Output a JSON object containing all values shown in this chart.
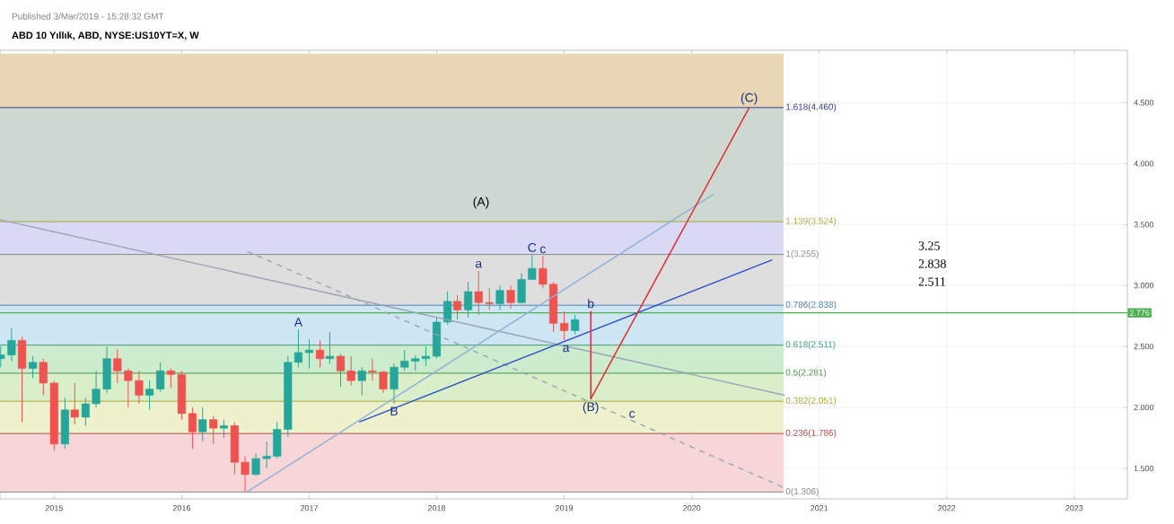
{
  "chart_data": {
    "type": "candlestick",
    "title": "ABD 10 Yıllık, ABD, NYSE:US10YT=X, W",
    "xlim": [
      "2014-07-30",
      "2023-06-02"
    ],
    "ylim": [
      1.25,
      4.93
    ],
    "xticks": [
      "2015",
      "2016",
      "2017",
      "2018",
      "2019",
      "2020",
      "2021",
      "2022",
      "2023"
    ],
    "yticks": [
      {
        "value": 1.5,
        "label": "1.500"
      },
      {
        "value": 2.0,
        "label": "2.000"
      },
      {
        "value": 2.5,
        "label": "2.500"
      },
      {
        "value": 3.0,
        "label": "3.000"
      },
      {
        "value": 3.5,
        "label": "3.500"
      },
      {
        "value": 4.0,
        "label": "4.000"
      },
      {
        "value": 4.5,
        "label": "4.500"
      }
    ],
    "grid": true,
    "series": [
      {
        "x": [
          "2014-08",
          "2014-09",
          "2014-10",
          "2014-11",
          "2014-12",
          "2015-01",
          "2015-02",
          "2015-03",
          "2015-04",
          "2015-05",
          "2015-06",
          "2015-07",
          "2015-08",
          "2015-09",
          "2015-10",
          "2015-11",
          "2015-12",
          "2016-01",
          "2016-02",
          "2016-03",
          "2016-04",
          "2016-05",
          "2016-06",
          "2016-07",
          "2016-08",
          "2016-09",
          "2016-10",
          "2016-11",
          "2016-12",
          "2017-01",
          "2017-02",
          "2017-03",
          "2017-04",
          "2017-05",
          "2017-06",
          "2017-07",
          "2017-08",
          "2017-09",
          "2017-10",
          "2017-11",
          "2017-12",
          "2018-01",
          "2018-02",
          "2018-03",
          "2018-04",
          "2018-05",
          "2018-06",
          "2018-07",
          "2018-08",
          "2018-09",
          "2018-10",
          "2018-11",
          "2018-12",
          "2019-01",
          "2019-02"
        ],
        "ohlc": [
          [
            2.4,
            2.5,
            2.33,
            2.43
          ],
          [
            2.43,
            2.65,
            2.38,
            2.55
          ],
          [
            2.55,
            2.58,
            1.88,
            2.32
          ],
          [
            2.32,
            2.42,
            2.24,
            2.37
          ],
          [
            2.37,
            2.4,
            2.1,
            2.2
          ],
          [
            2.2,
            2.22,
            1.65,
            1.7
          ],
          [
            1.7,
            2.08,
            1.66,
            1.98
          ],
          [
            1.98,
            2.2,
            1.86,
            1.92
          ],
          [
            1.92,
            2.08,
            1.85,
            2.03
          ],
          [
            2.03,
            2.3,
            2.0,
            2.15
          ],
          [
            2.15,
            2.5,
            2.12,
            2.4
          ],
          [
            2.4,
            2.48,
            2.2,
            2.3
          ],
          [
            2.3,
            2.32,
            2.0,
            2.22
          ],
          [
            2.22,
            2.3,
            2.03,
            2.1
          ],
          [
            2.1,
            2.22,
            1.98,
            2.15
          ],
          [
            2.15,
            2.37,
            2.13,
            2.3
          ],
          [
            2.3,
            2.32,
            2.16,
            2.27
          ],
          [
            2.27,
            2.3,
            1.9,
            1.95
          ],
          [
            1.95,
            2.0,
            1.66,
            1.8
          ],
          [
            1.8,
            2.0,
            1.72,
            1.9
          ],
          [
            1.9,
            1.93,
            1.7,
            1.83
          ],
          [
            1.83,
            1.9,
            1.75,
            1.85
          ],
          [
            1.85,
            1.88,
            1.45,
            1.55
          ],
          [
            1.55,
            1.6,
            1.31,
            1.45
          ],
          [
            1.45,
            1.62,
            1.44,
            1.58
          ],
          [
            1.58,
            1.72,
            1.5,
            1.6
          ],
          [
            1.6,
            1.88,
            1.58,
            1.82
          ],
          [
            1.82,
            2.42,
            1.76,
            2.37
          ],
          [
            2.37,
            2.64,
            2.33,
            2.45
          ],
          [
            2.45,
            2.56,
            2.32,
            2.47
          ],
          [
            2.47,
            2.55,
            2.33,
            2.4
          ],
          [
            2.4,
            2.62,
            2.36,
            2.42
          ],
          [
            2.42,
            2.44,
            2.17,
            2.3
          ],
          [
            2.3,
            2.42,
            2.18,
            2.22
          ],
          [
            2.22,
            2.33,
            2.1,
            2.3
          ],
          [
            2.3,
            2.4,
            2.22,
            2.29
          ],
          [
            2.29,
            2.3,
            2.12,
            2.15
          ],
          [
            2.15,
            2.36,
            2.03,
            2.33
          ],
          [
            2.33,
            2.47,
            2.3,
            2.38
          ],
          [
            2.38,
            2.43,
            2.3,
            2.4
          ],
          [
            2.4,
            2.5,
            2.34,
            2.42
          ],
          [
            2.42,
            2.74,
            2.4,
            2.7
          ],
          [
            2.7,
            2.95,
            2.68,
            2.87
          ],
          [
            2.87,
            2.92,
            2.72,
            2.8
          ],
          [
            2.8,
            3.03,
            2.74,
            2.95
          ],
          [
            2.95,
            3.12,
            2.76,
            2.86
          ],
          [
            2.86,
            2.98,
            2.8,
            2.85
          ],
          [
            2.85,
            3.0,
            2.8,
            2.96
          ],
          [
            2.96,
            3.0,
            2.81,
            2.86
          ],
          [
            2.86,
            3.1,
            2.85,
            3.05
          ],
          [
            3.05,
            3.25,
            3.05,
            3.14
          ],
          [
            3.14,
            3.24,
            2.98,
            3.01
          ],
          [
            3.01,
            3.03,
            2.62,
            2.69
          ],
          [
            2.69,
            2.79,
            2.55,
            2.63
          ],
          [
            2.63,
            2.76,
            2.6,
            2.72
          ]
        ],
        "colors": [
          "#26a69a",
          "#26a69a",
          "#ef5350",
          "#26a69a",
          "#ef5350",
          "#ef5350",
          "#26a69a",
          "#ef5350",
          "#26a69a",
          "#26a69a",
          "#26a69a",
          "#ef5350",
          "#ef5350",
          "#ef5350",
          "#26a69a",
          "#26a69a",
          "#ef5350",
          "#ef5350",
          "#ef5350",
          "#26a69a",
          "#ef5350",
          "#26a69a",
          "#ef5350",
          "#ef5350",
          "#26a69a",
          "#26a69a",
          "#26a69a",
          "#26a69a",
          "#26a69a",
          "#26a69a",
          "#ef5350",
          "#26a69a",
          "#ef5350",
          "#ef5350",
          "#26a69a",
          "#ef5350",
          "#ef5350",
          "#26a69a",
          "#26a69a",
          "#26a69a",
          "#26a69a",
          "#26a69a",
          "#26a69a",
          "#ef5350",
          "#26a69a",
          "#ef5350",
          "#ef5350",
          "#26a69a",
          "#ef5350",
          "#26a69a",
          "#26a69a",
          "#ef5350",
          "#ef5350",
          "#ef5350",
          "#26a69a"
        ]
      },
      {
        "type": "line",
        "x": [
          "2014-07-30",
          "2020-09-24"
        ],
        "values": [
          3.54,
          2.1
        ],
        "color": "#9aa3b5"
      },
      {
        "type": "line",
        "x": [
          "2016-07-08",
          "2020-09-24"
        ],
        "values": [
          3.28,
          1.34
        ],
        "color": "#9aa3b5",
        "line_style": "dashed"
      },
      {
        "type": "line",
        "x": [
          "2017-05-24",
          "2020-08-19"
        ],
        "values": [
          1.88,
          3.21
        ],
        "color": "#2e4fc4"
      },
      {
        "type": "line",
        "x": [
          "2016-07-08",
          "2020-03-04"
        ],
        "values": [
          1.31,
          3.75
        ],
        "color": "#8fb0d8"
      },
      {
        "type": "line",
        "x": [
          "2019-03-18",
          "2019-03-18",
          "2020-06-14"
        ],
        "values": [
          2.79,
          2.07,
          4.46
        ],
        "color": "#e8202a"
      }
    ],
    "bands": [
      {
        "axis": "y",
        "from": 1.306,
        "to": 1.786,
        "color": "#f6d6d6"
      },
      {
        "axis": "y",
        "from": 1.786,
        "to": 2.051,
        "color": "#eef2cc"
      },
      {
        "axis": "y",
        "from": 2.051,
        "to": 2.281,
        "color": "#d8efc9"
      },
      {
        "axis": "y",
        "from": 2.281,
        "to": 2.511,
        "color": "#cdeccd"
      },
      {
        "axis": "y",
        "from": 2.511,
        "to": 2.838,
        "color": "#cde6f2"
      },
      {
        "axis": "y",
        "from": 2.838,
        "to": 3.255,
        "color": "#dedede"
      },
      {
        "axis": "y",
        "from": 3.255,
        "to": 3.524,
        "color": "#d9d9f3"
      },
      {
        "axis": "y",
        "from": 3.524,
        "to": 4.46,
        "color": "#cfd8d0"
      },
      {
        "axis": "y",
        "from": 4.46,
        "to": 4.9,
        "color": "#e8d6b4"
      }
    ],
    "ref_lines": [
      {
        "axis": "y",
        "value": 2.776,
        "label": "2.776",
        "color": "#4caf50"
      },
      {
        "axis": "y",
        "value": 1.306,
        "label": "0(1.306)",
        "color": "#8a8a8a"
      },
      {
        "axis": "y",
        "value": 1.786,
        "label": "0.236(1.786)",
        "color": "#b04a4a"
      },
      {
        "axis": "y",
        "value": 2.051,
        "label": "0.382(2.051)",
        "color": "#a8a83a"
      },
      {
        "axis": "y",
        "value": 2.281,
        "label": "0.5(2.281)",
        "color": "#4a944a"
      },
      {
        "axis": "y",
        "value": 2.511,
        "label": "0.618(2.511)",
        "color": "#3f9a7a"
      },
      {
        "axis": "y",
        "value": 2.838,
        "label": "0.786(2.838)",
        "color": "#4a82b4"
      },
      {
        "axis": "y",
        "value": 3.255,
        "label": "1(3.255)",
        "color": "#8a8a8a"
      },
      {
        "axis": "y",
        "value": 3.524,
        "label": "1.139(3.524)",
        "color": "#a8a83a"
      },
      {
        "axis": "y",
        "value": 4.46,
        "label": "1.618(4.460)",
        "color": "#3a3a99"
      }
    ],
    "annotations": [
      "Published 3/Mar/2019 - 15:28:32 GMT",
      "(A)",
      "3.25",
      "2.838",
      "2.511",
      {
        "text": "A",
        "x": "2016-12",
        "y": 2.64
      },
      {
        "text": "B",
        "x": "2017-09",
        "y": 2.03
      },
      {
        "text": "C",
        "x": "2018-10",
        "y": 3.25
      },
      {
        "text": "a",
        "x": "2018-05",
        "y": 3.12
      },
      {
        "text": "c",
        "x": "2018-11",
        "y": 3.24
      },
      {
        "text": "b",
        "x": "2019-03-18",
        "y": 2.79
      },
      {
        "text": "a",
        "x": "2019-01-06",
        "y": 2.43
      },
      {
        "text": "c",
        "x": "2019-07-14",
        "y": 1.89
      },
      {
        "text": "(B)",
        "x": "2019-03-18",
        "y": 2.07
      },
      {
        "text": "(C)",
        "x": "2020-06-14",
        "y": 4.46
      }
    ]
  }
}
